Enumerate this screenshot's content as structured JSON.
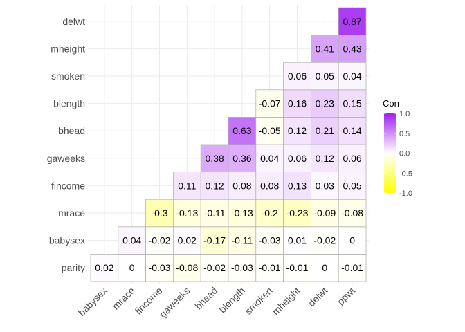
{
  "chart_data": {
    "type": "heatmap",
    "title": "",
    "xlabel": "",
    "ylabel": "",
    "x_labels": [
      "babysex",
      "mrace",
      "fincome",
      "gaweeks",
      "bhead",
      "blength",
      "smoken",
      "mheight",
      "delwt",
      "ppwt"
    ],
    "y_labels": [
      "parity",
      "babysex",
      "mrace",
      "fincome",
      "gaweeks",
      "bhead",
      "blength",
      "smoken",
      "mheight",
      "delwt"
    ],
    "cells": [
      {
        "row": "parity",
        "col": "babysex",
        "value": 0.02,
        "label": "0.02"
      },
      {
        "row": "parity",
        "col": "mrace",
        "value": 0,
        "label": "0"
      },
      {
        "row": "parity",
        "col": "fincome",
        "value": -0.03,
        "label": "-0.03"
      },
      {
        "row": "parity",
        "col": "gaweeks",
        "value": -0.08,
        "label": "-0.08"
      },
      {
        "row": "parity",
        "col": "bhead",
        "value": -0.02,
        "label": "-0.02"
      },
      {
        "row": "parity",
        "col": "blength",
        "value": -0.03,
        "label": "-0.03"
      },
      {
        "row": "parity",
        "col": "smoken",
        "value": -0.01,
        "label": "-0.01"
      },
      {
        "row": "parity",
        "col": "mheight",
        "value": -0.01,
        "label": "-0.01"
      },
      {
        "row": "parity",
        "col": "delwt",
        "value": 0,
        "label": "0"
      },
      {
        "row": "parity",
        "col": "ppwt",
        "value": -0.01,
        "label": "-0.01"
      },
      {
        "row": "babysex",
        "col": "mrace",
        "value": 0.04,
        "label": "0.04"
      },
      {
        "row": "babysex",
        "col": "fincome",
        "value": -0.02,
        "label": "-0.02"
      },
      {
        "row": "babysex",
        "col": "gaweeks",
        "value": 0.02,
        "label": "0.02"
      },
      {
        "row": "babysex",
        "col": "bhead",
        "value": -0.17,
        "label": "-0.17"
      },
      {
        "row": "babysex",
        "col": "blength",
        "value": -0.11,
        "label": "-0.11"
      },
      {
        "row": "babysex",
        "col": "smoken",
        "value": -0.03,
        "label": "-0.03"
      },
      {
        "row": "babysex",
        "col": "mheight",
        "value": 0.01,
        "label": "0.01"
      },
      {
        "row": "babysex",
        "col": "delwt",
        "value": -0.02,
        "label": "-0.02"
      },
      {
        "row": "babysex",
        "col": "ppwt",
        "value": 0,
        "label": "0"
      },
      {
        "row": "mrace",
        "col": "fincome",
        "value": -0.3,
        "label": "-0.3"
      },
      {
        "row": "mrace",
        "col": "gaweeks",
        "value": -0.13,
        "label": "-0.13"
      },
      {
        "row": "mrace",
        "col": "bhead",
        "value": -0.11,
        "label": "-0.11"
      },
      {
        "row": "mrace",
        "col": "blength",
        "value": -0.13,
        "label": "-0.13"
      },
      {
        "row": "mrace",
        "col": "smoken",
        "value": -0.2,
        "label": "-0.2"
      },
      {
        "row": "mrace",
        "col": "mheight",
        "value": -0.23,
        "label": "-0.23"
      },
      {
        "row": "mrace",
        "col": "delwt",
        "value": -0.09,
        "label": "-0.09"
      },
      {
        "row": "mrace",
        "col": "ppwt",
        "value": -0.08,
        "label": "-0.08"
      },
      {
        "row": "fincome",
        "col": "gaweeks",
        "value": 0.11,
        "label": "0.11"
      },
      {
        "row": "fincome",
        "col": "bhead",
        "value": 0.12,
        "label": "0.12"
      },
      {
        "row": "fincome",
        "col": "blength",
        "value": 0.08,
        "label": "0.08"
      },
      {
        "row": "fincome",
        "col": "smoken",
        "value": 0.08,
        "label": "0.08"
      },
      {
        "row": "fincome",
        "col": "mheight",
        "value": 0.13,
        "label": "0.13"
      },
      {
        "row": "fincome",
        "col": "delwt",
        "value": 0.03,
        "label": "0.03"
      },
      {
        "row": "fincome",
        "col": "ppwt",
        "value": 0.05,
        "label": "0.05"
      },
      {
        "row": "gaweeks",
        "col": "bhead",
        "value": 0.38,
        "label": "0.38"
      },
      {
        "row": "gaweeks",
        "col": "blength",
        "value": 0.36,
        "label": "0.36"
      },
      {
        "row": "gaweeks",
        "col": "smoken",
        "value": 0.04,
        "label": "0.04"
      },
      {
        "row": "gaweeks",
        "col": "mheight",
        "value": 0.06,
        "label": "0.06"
      },
      {
        "row": "gaweeks",
        "col": "delwt",
        "value": 0.12,
        "label": "0.12"
      },
      {
        "row": "gaweeks",
        "col": "ppwt",
        "value": 0.06,
        "label": "0.06"
      },
      {
        "row": "bhead",
        "col": "blength",
        "value": 0.63,
        "label": "0.63"
      },
      {
        "row": "bhead",
        "col": "smoken",
        "value": -0.05,
        "label": "-0.05"
      },
      {
        "row": "bhead",
        "col": "mheight",
        "value": 0.12,
        "label": "0.12"
      },
      {
        "row": "bhead",
        "col": "delwt",
        "value": 0.21,
        "label": "0.21"
      },
      {
        "row": "bhead",
        "col": "ppwt",
        "value": 0.14,
        "label": "0.14"
      },
      {
        "row": "blength",
        "col": "smoken",
        "value": -0.07,
        "label": "-0.07"
      },
      {
        "row": "blength",
        "col": "mheight",
        "value": 0.16,
        "label": "0.16"
      },
      {
        "row": "blength",
        "col": "delwt",
        "value": 0.23,
        "label": "0.23"
      },
      {
        "row": "blength",
        "col": "ppwt",
        "value": 0.15,
        "label": "0.15"
      },
      {
        "row": "smoken",
        "col": "mheight",
        "value": 0.06,
        "label": "0.06"
      },
      {
        "row": "smoken",
        "col": "delwt",
        "value": 0.05,
        "label": "0.05"
      },
      {
        "row": "smoken",
        "col": "ppwt",
        "value": 0.04,
        "label": "0.04"
      },
      {
        "row": "mheight",
        "col": "delwt",
        "value": 0.41,
        "label": "0.41"
      },
      {
        "row": "mheight",
        "col": "ppwt",
        "value": 0.43,
        "label": "0.43"
      },
      {
        "row": "delwt",
        "col": "ppwt",
        "value": 0.87,
        "label": "0.87"
      }
    ],
    "color_scale": {
      "low": "#ffff00",
      "mid": "#ffffff",
      "high": "#a020f0",
      "limits": [
        -1,
        1
      ]
    },
    "legend": {
      "title": "Corr",
      "placement": "right",
      "ticks": [
        1.0,
        0.5,
        0.0,
        -0.5,
        -1.0
      ],
      "tick_labels": [
        "1.0",
        "0.5",
        "0.0",
        "-0.5",
        "-1.0"
      ]
    },
    "grid": true,
    "cell_border_color": "#b3b3b3"
  }
}
